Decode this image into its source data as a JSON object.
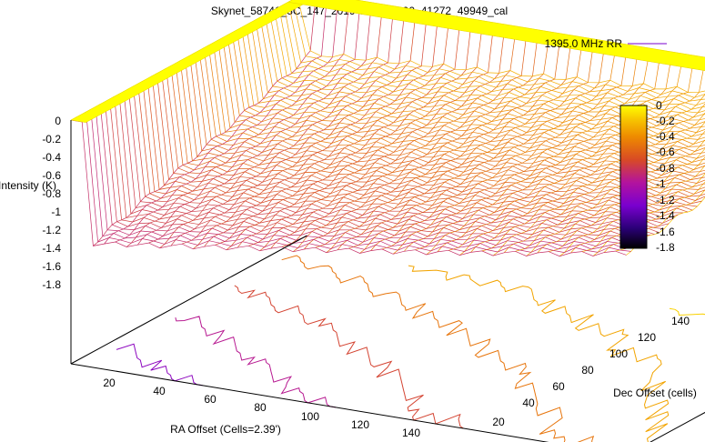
{
  "chart_data": {
    "type": "surface",
    "title": "Skynet_58741_3C_147_2019-06-15-1200_41272_49949_cal",
    "xlabel": "RA Offset (Cells=2.39')",
    "ylabel": "Dec Offset (cells)",
    "zlabel": "Intensity (K)",
    "x_ticks": [
      "20",
      "40",
      "60",
      "80",
      "100",
      "120",
      "140"
    ],
    "y_ticks": [
      "20",
      "40",
      "60",
      "80",
      "100",
      "120",
      "140"
    ],
    "z_ticks": [
      "0",
      "-0.2",
      "-0.4",
      "-0.6",
      "-0.8",
      "-1",
      "-1.2",
      "-1.4",
      "-1.6",
      "-1.8"
    ],
    "xlim": [
      0,
      150
    ],
    "ylim": [
      0,
      150
    ],
    "zlim": [
      -1.8,
      0
    ],
    "colorbar": {
      "range": [
        -1.8,
        0
      ],
      "ticks": [
        "0",
        "-0.2",
        "-0.4",
        "-0.6",
        "-0.8",
        "-1",
        "-1.2",
        "-1.4",
        "-1.6",
        "-1.8"
      ],
      "palette": [
        "#000000",
        "#2a0077",
        "#7a00cf",
        "#b3139e",
        "#d84a25",
        "#ee8a00",
        "#f7c400",
        "#ffff00"
      ]
    },
    "legend": {
      "position": "top-right",
      "entries": [
        "1395.0 MHz RR"
      ]
    },
    "series": [
      {
        "name": "1395.0 MHz RR",
        "surface": {
          "x_range": [
            0,
            150
          ],
          "y_range": [
            0,
            150
          ],
          "baseline_intensity": -0.45,
          "edge_intensity": 0.0,
          "low_corner_intensity": -1.35,
          "gradient_direction": "decreasing toward low Dec and low RA"
        }
      }
    ],
    "contour_levels": [
      "-0.2",
      "-0.4",
      "-0.6",
      "-0.8",
      "-1",
      "-1.2",
      "-1.4"
    ]
  }
}
